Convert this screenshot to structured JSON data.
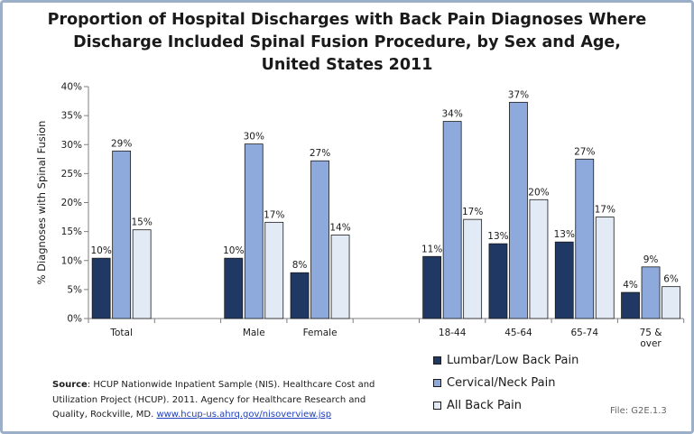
{
  "chart_data": {
    "type": "bar",
    "title_lines": [
      "Proportion of Hospital Discharges with Back Pain Diagnoses Where",
      "Discharge Included Spinal Fusion Procedure, by Sex and Age,",
      "United States 2011"
    ],
    "ylabel": "% Diagnoses with Spinal Fusion",
    "xlabel": "",
    "ylim": [
      0,
      40
    ],
    "y_ticks": [
      "0%",
      "5%",
      "10%",
      "15%",
      "20%",
      "25%",
      "30%",
      "35%",
      "40%"
    ],
    "grid": false,
    "legend_position": "bottom-right",
    "categories": [
      "Total",
      "Male",
      "Female",
      "18-44",
      "45-64",
      "65-74",
      "75 &\nover"
    ],
    "series": [
      {
        "name": "Lumbar/Low Back Pain",
        "color": "#1f3864",
        "values": [
          10.4,
          10.4,
          7.9,
          10.7,
          12.9,
          13.2,
          4.5
        ],
        "labels": [
          "10%",
          "10%",
          "8%",
          "11%",
          "13%",
          "13%",
          "4%"
        ]
      },
      {
        "name": "Cervical/Neck Pain",
        "color": "#8ea9db",
        "values": [
          28.9,
          30.1,
          27.2,
          34.0,
          37.3,
          27.5,
          8.9
        ],
        "labels": [
          "29%",
          "30%",
          "27%",
          "34%",
          "37%",
          "27%",
          "9%"
        ]
      },
      {
        "name": "All Back Pain",
        "color": "#e2eaf6",
        "values": [
          15.3,
          16.6,
          14.4,
          17.1,
          20.5,
          17.5,
          5.5
        ],
        "labels": [
          "15%",
          "17%",
          "14%",
          "17%",
          "20%",
          "17%",
          "6%"
        ]
      }
    ]
  },
  "source": {
    "label": "Source",
    "text": ":  HCUP Nationwide Inpatient Sample (NIS). Healthcare Cost and Utilization Project (HCUP). 2011. Agency for Healthcare Research and Quality, Rockville, MD. ",
    "link": "www.hcup-us.ahrq.gov/nisoverview.jsp"
  },
  "file_id": "File: G2E.1.3"
}
